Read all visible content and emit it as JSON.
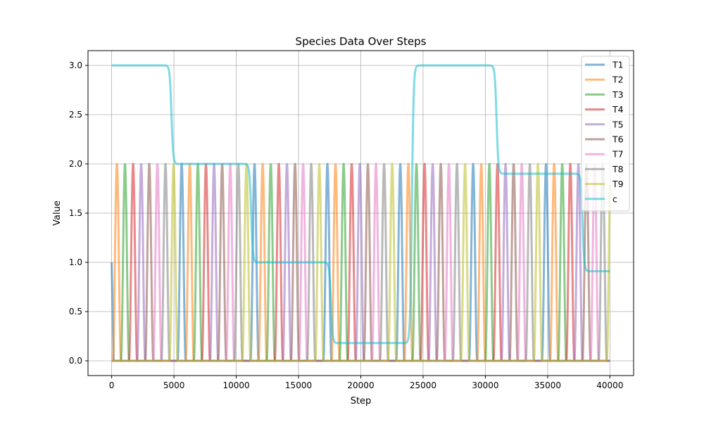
{
  "chart_data": {
    "type": "line",
    "title": "Species Data Over Steps",
    "xlabel": "Step",
    "ylabel": "Value",
    "xlim": [
      -1900,
      41900
    ],
    "ylim": [
      -0.15,
      3.15
    ],
    "x_ticks": [
      0,
      5000,
      10000,
      15000,
      20000,
      25000,
      30000,
      35000,
      40000
    ],
    "x_tick_labels": [
      "0",
      "5000",
      "10000",
      "15000",
      "20000",
      "25000",
      "30000",
      "35000",
      "40000"
    ],
    "y_ticks": [
      0.0,
      0.5,
      1.0,
      1.5,
      2.0,
      2.5,
      3.0
    ],
    "y_tick_labels": [
      "0.0",
      "0.5",
      "1.0",
      "1.5",
      "2.0",
      "2.5",
      "3.0"
    ],
    "grid": true,
    "legend_position": "top-right",
    "oscillation": {
      "peak_value": 2.0,
      "period": 5850,
      "pulse_width": 650,
      "first_peak_T2": 420,
      "x_end": 40000
    },
    "series": [
      {
        "name": "T1",
        "color": "#1f77b4",
        "initial_value": 1.0
      },
      {
        "name": "T2",
        "color": "#ff7f0e"
      },
      {
        "name": "T3",
        "color": "#2ca02c"
      },
      {
        "name": "T4",
        "color": "#d62728"
      },
      {
        "name": "T5",
        "color": "#9467bd"
      },
      {
        "name": "T6",
        "color": "#8c564b"
      },
      {
        "name": "T7",
        "color": "#e377c2"
      },
      {
        "name": "T8",
        "color": "#7f7f7f"
      },
      {
        "name": "T9",
        "color": "#bcbd22"
      },
      {
        "name": "c",
        "color": "#17becf",
        "levels": [
          {
            "x": 0,
            "y": 3.0
          },
          {
            "x": 4800,
            "y": 2.0
          },
          {
            "x": 11200,
            "y": 1.0
          },
          {
            "x": 17600,
            "y": 0.18
          },
          {
            "x": 24100,
            "y": 3.0
          },
          {
            "x": 30900,
            "y": 1.9
          },
          {
            "x": 37800,
            "y": 0.91
          },
          {
            "x": 40000,
            "y": 0.91
          }
        ]
      }
    ]
  }
}
